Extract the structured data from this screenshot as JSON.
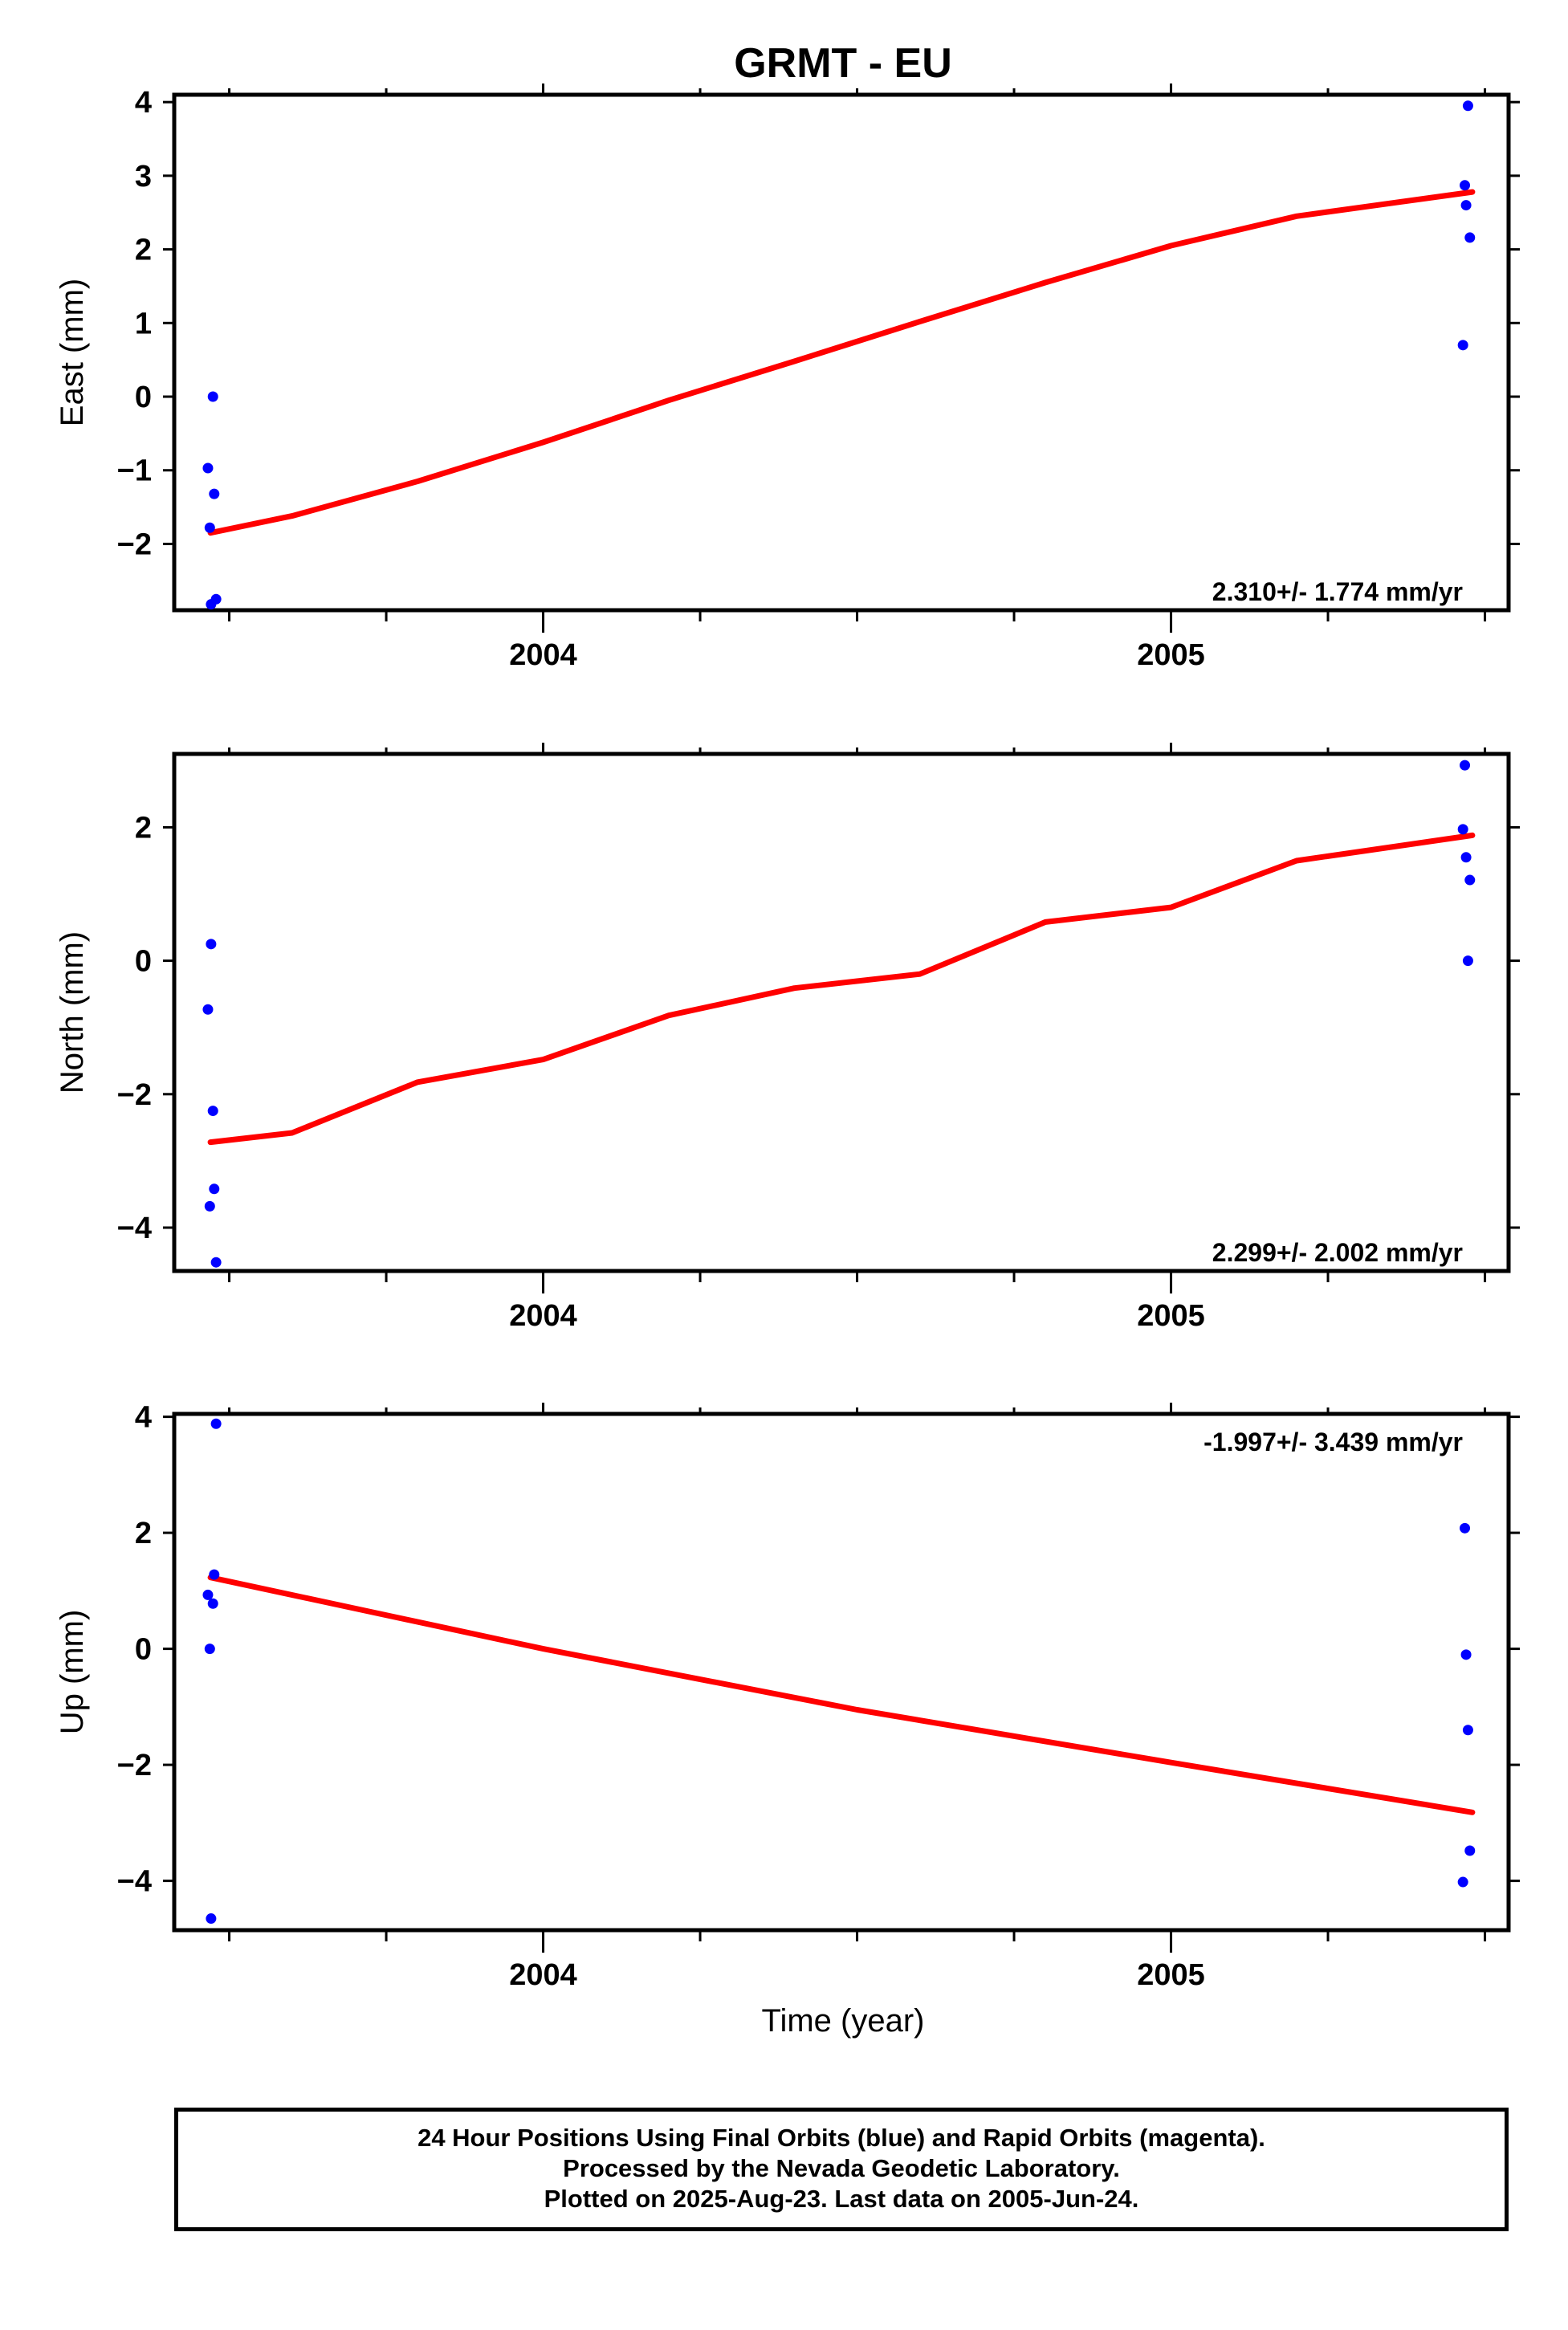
{
  "chart_data": {
    "type": "scatter",
    "title": "GRMT - EU",
    "xlabel": "Time (year)",
    "colors": {
      "points": "#0000ff",
      "fit": "#ff0000",
      "frame": "#000000"
    },
    "xlim": [
      2003.42,
      2005.53
    ],
    "x_ticks": [
      2004,
      2005
    ],
    "panels": [
      {
        "ylabel": "East (mm)",
        "ylim": [
          -2.9,
          4.1
        ],
        "y_ticks": [
          4,
          3,
          2,
          1,
          0,
          -1,
          -2
        ],
        "y_tick_labels": [
          "4",
          "3",
          "2",
          "1",
          "0",
          "−1",
          "−2"
        ],
        "rate": "2.310+/- 1.774 mm/yr",
        "rate_position": "bottom-right",
        "points": [
          {
            "x": 2003.466,
            "y": -0.97
          },
          {
            "x": 2003.469,
            "y": -1.78
          },
          {
            "x": 2003.471,
            "y": -2.82
          },
          {
            "x": 2003.474,
            "y": 0.0
          },
          {
            "x": 2003.476,
            "y": -1.32
          },
          {
            "x": 2003.479,
            "y": -2.75
          },
          {
            "x": 2005.465,
            "y": 0.7
          },
          {
            "x": 2005.468,
            "y": 2.87
          },
          {
            "x": 2005.47,
            "y": 2.6
          },
          {
            "x": 2005.473,
            "y": 3.95
          },
          {
            "x": 2005.476,
            "y": 2.16
          }
        ],
        "fit": [
          {
            "x": 2003.47,
            "y": -1.85
          },
          {
            "x": 2003.6,
            "y": -1.62
          },
          {
            "x": 2003.8,
            "y": -1.15
          },
          {
            "x": 2004.0,
            "y": -0.62
          },
          {
            "x": 2004.2,
            "y": -0.05
          },
          {
            "x": 2004.4,
            "y": 0.48
          },
          {
            "x": 2004.6,
            "y": 1.02
          },
          {
            "x": 2004.8,
            "y": 1.55
          },
          {
            "x": 2005.0,
            "y": 2.05
          },
          {
            "x": 2005.2,
            "y": 2.45
          },
          {
            "x": 2005.48,
            "y": 2.78
          }
        ]
      },
      {
        "ylabel": "North (mm)",
        "ylim": [
          -4.65,
          3.1
        ],
        "y_ticks": [
          2,
          0,
          -2,
          -4
        ],
        "y_tick_labels": [
          "2",
          "0",
          "−2",
          "−4"
        ],
        "rate": "2.299+/- 2.002 mm/yr",
        "rate_position": "bottom-right",
        "points": [
          {
            "x": 2003.466,
            "y": -0.73
          },
          {
            "x": 2003.469,
            "y": -3.68
          },
          {
            "x": 2003.471,
            "y": 0.25
          },
          {
            "x": 2003.474,
            "y": -2.25
          },
          {
            "x": 2003.476,
            "y": -3.42
          },
          {
            "x": 2003.479,
            "y": -4.52
          },
          {
            "x": 2005.465,
            "y": 1.97
          },
          {
            "x": 2005.468,
            "y": 2.93
          },
          {
            "x": 2005.47,
            "y": 1.55
          },
          {
            "x": 2005.473,
            "y": 0.0
          },
          {
            "x": 2005.476,
            "y": 1.21
          }
        ],
        "fit": [
          {
            "x": 2003.47,
            "y": -2.72
          },
          {
            "x": 2003.6,
            "y": -2.58
          },
          {
            "x": 2003.8,
            "y": -1.82
          },
          {
            "x": 2004.0,
            "y": -1.48
          },
          {
            "x": 2004.2,
            "y": -0.82
          },
          {
            "x": 2004.4,
            "y": -0.41
          },
          {
            "x": 2004.6,
            "y": -0.2
          },
          {
            "x": 2004.8,
            "y": 0.58
          },
          {
            "x": 2005.0,
            "y": 0.8
          },
          {
            "x": 2005.2,
            "y": 1.5
          },
          {
            "x": 2005.48,
            "y": 1.88
          }
        ]
      },
      {
        "ylabel": "Up (mm)",
        "ylim": [
          -4.85,
          4.05
        ],
        "y_ticks": [
          4,
          2,
          0,
          -2,
          -4
        ],
        "y_tick_labels": [
          "4",
          "2",
          "0",
          "−2",
          "−4"
        ],
        "rate": "-1.997+/- 3.439 mm/yr",
        "rate_position": "top-right",
        "points": [
          {
            "x": 2003.466,
            "y": 0.93
          },
          {
            "x": 2003.469,
            "y": 0.0
          },
          {
            "x": 2003.471,
            "y": -4.65
          },
          {
            "x": 2003.474,
            "y": 0.78
          },
          {
            "x": 2003.476,
            "y": 1.28
          },
          {
            "x": 2003.479,
            "y": 3.88
          },
          {
            "x": 2005.465,
            "y": -4.02
          },
          {
            "x": 2005.468,
            "y": 2.08
          },
          {
            "x": 2005.47,
            "y": -0.1
          },
          {
            "x": 2005.473,
            "y": -1.4
          },
          {
            "x": 2005.476,
            "y": -3.48
          }
        ],
        "fit": [
          {
            "x": 2003.47,
            "y": 1.23
          },
          {
            "x": 2004.0,
            "y": 0.0
          },
          {
            "x": 2004.5,
            "y": -1.05
          },
          {
            "x": 2005.0,
            "y": -1.96
          },
          {
            "x": 2005.48,
            "y": -2.82
          }
        ]
      }
    ]
  },
  "footer": {
    "lines": [
      "24 Hour Positions Using Final Orbits (blue) and Rapid Orbits (magenta).",
      "Processed by the Nevada Geodetic Laboratory.",
      "Plotted on 2025-Aug-23. Last data on 2005-Jun-24."
    ]
  }
}
